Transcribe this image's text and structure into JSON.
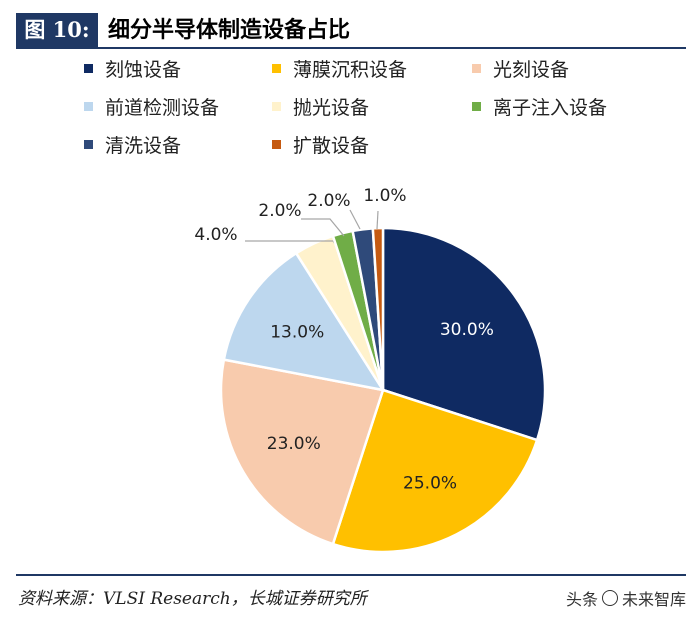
{
  "figure": {
    "label": "图 10:",
    "title": "细分半导体制造设备占比"
  },
  "chart_data": {
    "type": "pie",
    "title": "细分半导体制造设备占比",
    "start_angle_deg": 0,
    "direction": "clockwise",
    "slices": [
      {
        "label": "刻蚀设备",
        "value": 30.0,
        "display": "30.0%",
        "color": "#0f2a62",
        "label_color": "#ffffff"
      },
      {
        "label": "薄膜沉积设备",
        "value": 25.0,
        "display": "25.0%",
        "color": "#ffc000",
        "label_color": "#222222"
      },
      {
        "label": "光刻设备",
        "value": 23.0,
        "display": "23.0%",
        "color": "#f8cbad",
        "label_color": "#222222"
      },
      {
        "label": "前道检测设备",
        "value": 13.0,
        "display": "13.0%",
        "color": "#bdd7ee",
        "label_color": "#222222"
      },
      {
        "label": "抛光设备",
        "value": 4.0,
        "display": "4.0%",
        "color": "#fff2cc",
        "label_color": "#222222"
      },
      {
        "label": "离子注入设备",
        "value": 2.0,
        "display": "2.0%",
        "color": "#70ad47",
        "label_color": "#222222"
      },
      {
        "label": "清洗设备",
        "value": 2.0,
        "display": "2.0%",
        "color": "#2f4a7a",
        "label_color": "#222222"
      },
      {
        "label": "扩散设备",
        "value": 1.0,
        "display": "1.0%",
        "color": "#c55a11",
        "label_color": "#222222"
      }
    ],
    "legend_position": "top"
  },
  "source": "资料来源：VLSI Research，长城证券研究所",
  "watermark": {
    "prefix": "头条",
    "name": "未来智库"
  }
}
